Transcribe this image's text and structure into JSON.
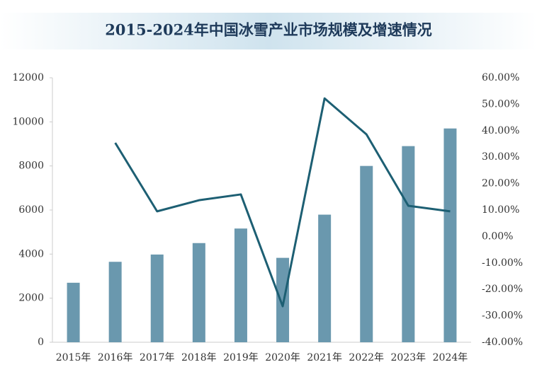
{
  "chart_data": {
    "type": "bar+line",
    "title": "2015-2024年中国冰雪产业市场规模及增速情况",
    "categories": [
      "2015年",
      "2016年",
      "2017年",
      "2018年",
      "2019年",
      "2020年",
      "2021年",
      "2022年",
      "2023年",
      "2024年"
    ],
    "series": [
      {
        "type": "bar",
        "color": "#6a98ae",
        "values": [
          2700,
          3650,
          3980,
          4500,
          5160,
          3830,
          5790,
          8000,
          8900,
          9700
        ]
      },
      {
        "type": "line",
        "color": "#1d5f73",
        "axis": "y2",
        "values": [
          null,
          35.4,
          9.5,
          13.7,
          15.9,
          -26.4,
          52.2,
          38.6,
          11.6,
          9.5
        ]
      }
    ],
    "ylim": [
      0,
      12000
    ],
    "yticks": [
      0,
      2000,
      4000,
      6000,
      8000,
      10000,
      12000
    ],
    "y2lim": [
      -40,
      60
    ],
    "y2ticks": [
      {
        "value": -40,
        "label": "-40.00%"
      },
      {
        "value": -30,
        "label": "-30.00%"
      },
      {
        "value": -20,
        "label": "-20.00%"
      },
      {
        "value": -10,
        "label": "-10.00%"
      },
      {
        "value": 0,
        "label": "0.00%"
      },
      {
        "value": 10,
        "label": "10.00%"
      },
      {
        "value": 20,
        "label": "20.00%"
      },
      {
        "value": 30,
        "label": "30.00%"
      },
      {
        "value": 40,
        "label": "40.00%"
      },
      {
        "value": 50,
        "label": "50.00%"
      },
      {
        "value": 60,
        "label": "60.00%"
      }
    ]
  }
}
